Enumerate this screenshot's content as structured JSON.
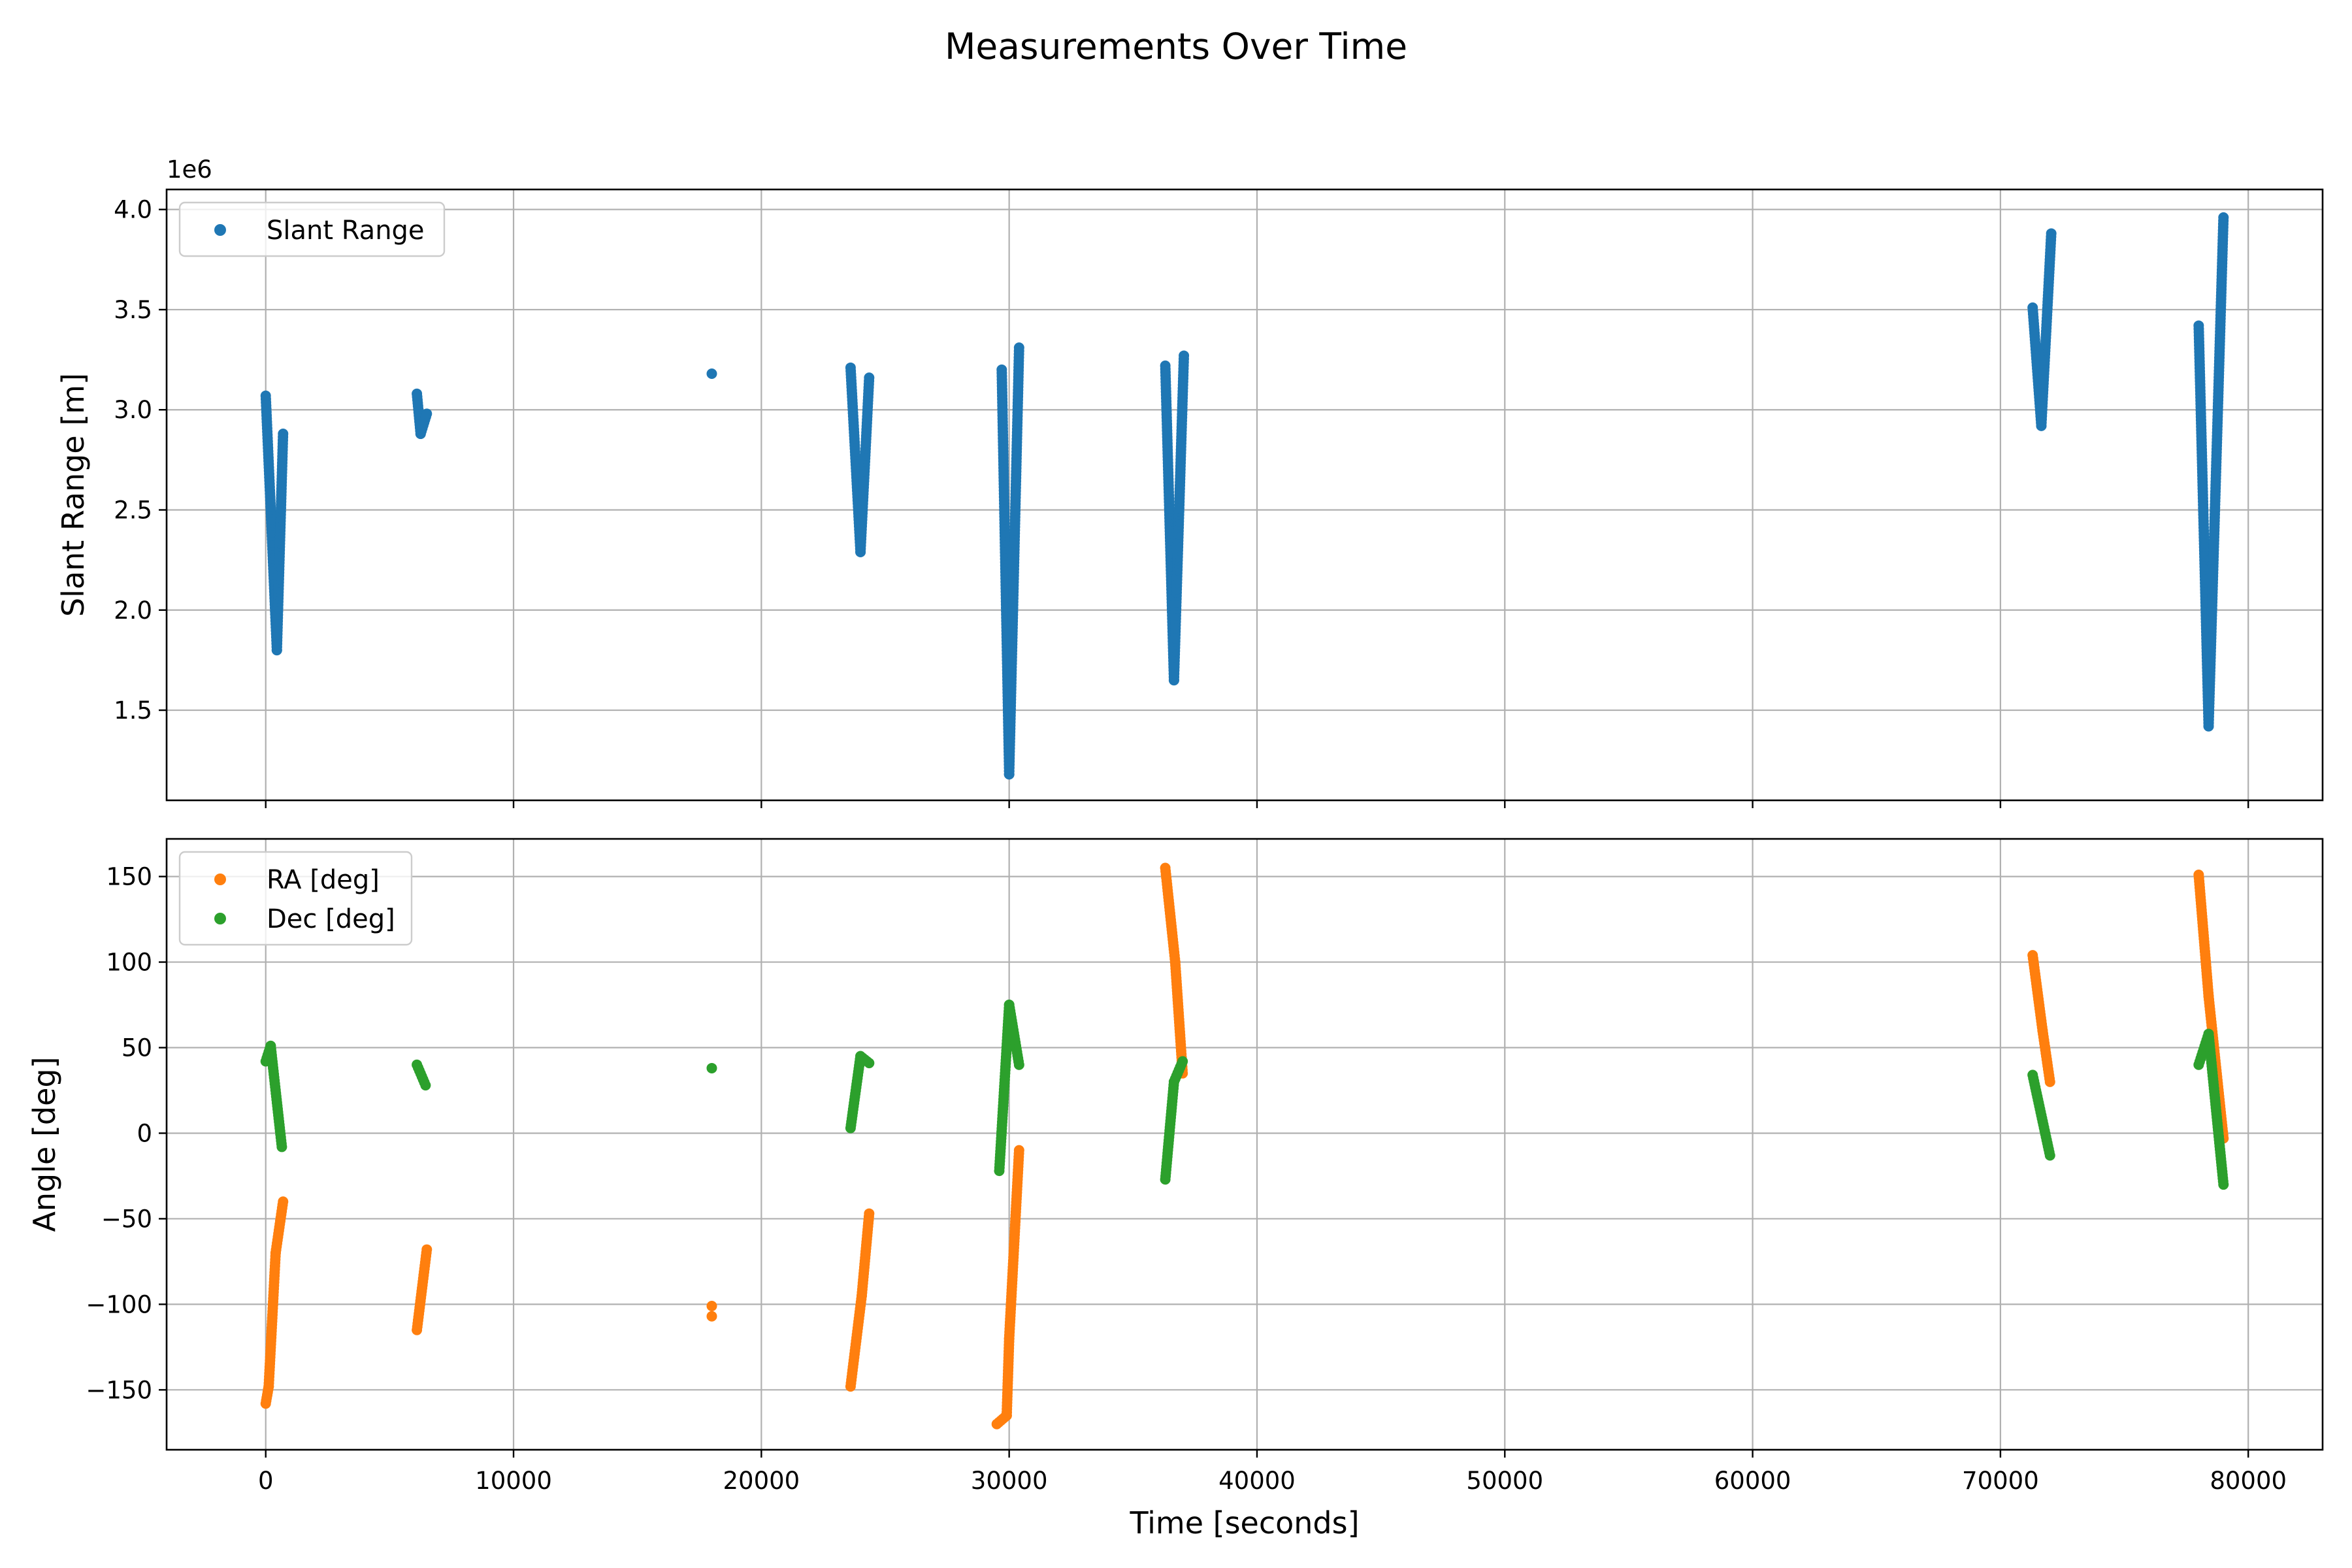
{
  "figure": {
    "title": "Measurements Over Time"
  },
  "chart_data": [
    {
      "type": "scatter",
      "title": "",
      "xlabel": "",
      "ylabel": "Slant Range [m]",
      "offset_label": "1e6",
      "xlim": [
        -4000,
        83000
      ],
      "ylim": [
        1.05,
        4.1
      ],
      "xticks": [
        0,
        10000,
        20000,
        30000,
        40000,
        50000,
        60000,
        70000,
        80000
      ],
      "yticks": [
        1.5,
        2.0,
        2.5,
        3.0,
        3.5,
        4.0
      ],
      "ytick_labels": [
        "1.5",
        "2.0",
        "2.5",
        "3.0",
        "3.5",
        "4.0"
      ],
      "show_xtick_labels": false,
      "grid": true,
      "legend_position": "top-left",
      "series": [
        {
          "name": "Slant Range",
          "color": "#1f77b4",
          "segments": [
            {
              "x": [
                0,
                450
              ],
              "y": [
                3.07,
                1.8
              ]
            },
            {
              "x": [
                450,
                700
              ],
              "y": [
                1.8,
                2.88
              ]
            },
            {
              "x": [
                6100,
                6250
              ],
              "y": [
                3.08,
                2.88
              ]
            },
            {
              "x": [
                6250,
                6500
              ],
              "y": [
                2.88,
                2.98
              ]
            },
            {
              "x": [
                23600,
                24000
              ],
              "y": [
                3.21,
                2.29
              ]
            },
            {
              "x": [
                24000,
                24350
              ],
              "y": [
                2.29,
                3.16
              ]
            },
            {
              "x": [
                29700,
                30000
              ],
              "y": [
                3.2,
                1.18
              ]
            },
            {
              "x": [
                30000,
                30400
              ],
              "y": [
                1.18,
                3.31
              ]
            },
            {
              "x": [
                36300,
                36650
              ],
              "y": [
                3.22,
                1.65
              ]
            },
            {
              "x": [
                36650,
                37050
              ],
              "y": [
                1.65,
                3.27
              ]
            },
            {
              "x": [
                71300,
                71650
              ],
              "y": [
                3.51,
                2.92
              ]
            },
            {
              "x": [
                71650,
                72050
              ],
              "y": [
                2.92,
                3.88
              ]
            },
            {
              "x": [
                78000,
                78400
              ],
              "y": [
                3.42,
                1.42
              ]
            },
            {
              "x": [
                78400,
                79000
              ],
              "y": [
                1.42,
                3.96
              ]
            }
          ],
          "points": [
            {
              "x": 18000,
              "y": 3.18
            }
          ]
        }
      ]
    },
    {
      "type": "scatter",
      "title": "",
      "xlabel": "Time [seconds]",
      "ylabel": "Angle [deg]",
      "xlim": [
        -4000,
        83000
      ],
      "ylim": [
        -185,
        172
      ],
      "xticks": [
        0,
        10000,
        20000,
        30000,
        40000,
        50000,
        60000,
        70000,
        80000
      ],
      "xtick_labels": [
        "0",
        "10000",
        "20000",
        "30000",
        "40000",
        "50000",
        "60000",
        "70000",
        "80000"
      ],
      "yticks": [
        -150,
        -100,
        -50,
        0,
        50,
        100,
        150
      ],
      "ytick_labels": [
        "−150",
        "−100",
        "−50",
        "0",
        "50",
        "100",
        "150"
      ],
      "grid": true,
      "legend_position": "top-left",
      "series": [
        {
          "name": "RA [deg]",
          "color": "#ff7f0e",
          "segments": [
            {
              "x": [
                0,
                120
              ],
              "y": [
                -158,
                -148
              ]
            },
            {
              "x": [
                120,
                400
              ],
              "y": [
                -148,
                -70
              ]
            },
            {
              "x": [
                400,
                700
              ],
              "y": [
                -70,
                -40
              ]
            },
            {
              "x": [
                6100,
                6500
              ],
              "y": [
                -115,
                -68
              ]
            },
            {
              "x": [
                23600,
                24050
              ],
              "y": [
                -148,
                -95
              ]
            },
            {
              "x": [
                24050,
                24350
              ],
              "y": [
                -95,
                -47
              ]
            },
            {
              "x": [
                29500,
                29900
              ],
              "y": [
                -170,
                -165
              ]
            },
            {
              "x": [
                29900,
                30000
              ],
              "y": [
                -165,
                -120
              ]
            },
            {
              "x": [
                30000,
                30400
              ],
              "y": [
                -120,
                -10
              ]
            },
            {
              "x": [
                36300,
                36700
              ],
              "y": [
                155,
                100
              ]
            },
            {
              "x": [
                36700,
                37000
              ],
              "y": [
                100,
                35
              ]
            },
            {
              "x": [
                71300,
                71700
              ],
              "y": [
                104,
                60
              ]
            },
            {
              "x": [
                71700,
                72000
              ],
              "y": [
                60,
                30
              ]
            },
            {
              "x": [
                78000,
                78400
              ],
              "y": [
                151,
                80
              ]
            },
            {
              "x": [
                78400,
                79000
              ],
              "y": [
                80,
                -3
              ]
            }
          ],
          "points": [
            {
              "x": 18000,
              "y": -101
            },
            {
              "x": 18000,
              "y": -107
            }
          ]
        },
        {
          "name": "Dec [deg]",
          "color": "#2ca02c",
          "segments": [
            {
              "x": [
                0,
                200
              ],
              "y": [
                42,
                51
              ]
            },
            {
              "x": [
                200,
                650
              ],
              "y": [
                51,
                -8
              ]
            },
            {
              "x": [
                6100,
                6450
              ],
              "y": [
                40,
                28
              ]
            },
            {
              "x": [
                23600,
                24000
              ],
              "y": [
                3,
                45
              ]
            },
            {
              "x": [
                24000,
                24350
              ],
              "y": [
                45,
                41
              ]
            },
            {
              "x": [
                29600,
                30000
              ],
              "y": [
                -22,
                75
              ]
            },
            {
              "x": [
                30000,
                30400
              ],
              "y": [
                75,
                40
              ]
            },
            {
              "x": [
                36300,
                36650
              ],
              "y": [
                -27,
                30
              ]
            },
            {
              "x": [
                36650,
                37000
              ],
              "y": [
                30,
                42
              ]
            },
            {
              "x": [
                71300,
                72000
              ],
              "y": [
                34,
                -13
              ]
            },
            {
              "x": [
                78000,
                78400
              ],
              "y": [
                40,
                58
              ]
            },
            {
              "x": [
                78400,
                79000
              ],
              "y": [
                58,
                -30
              ]
            }
          ],
          "points": [
            {
              "x": 18000,
              "y": 38
            }
          ]
        }
      ]
    }
  ]
}
